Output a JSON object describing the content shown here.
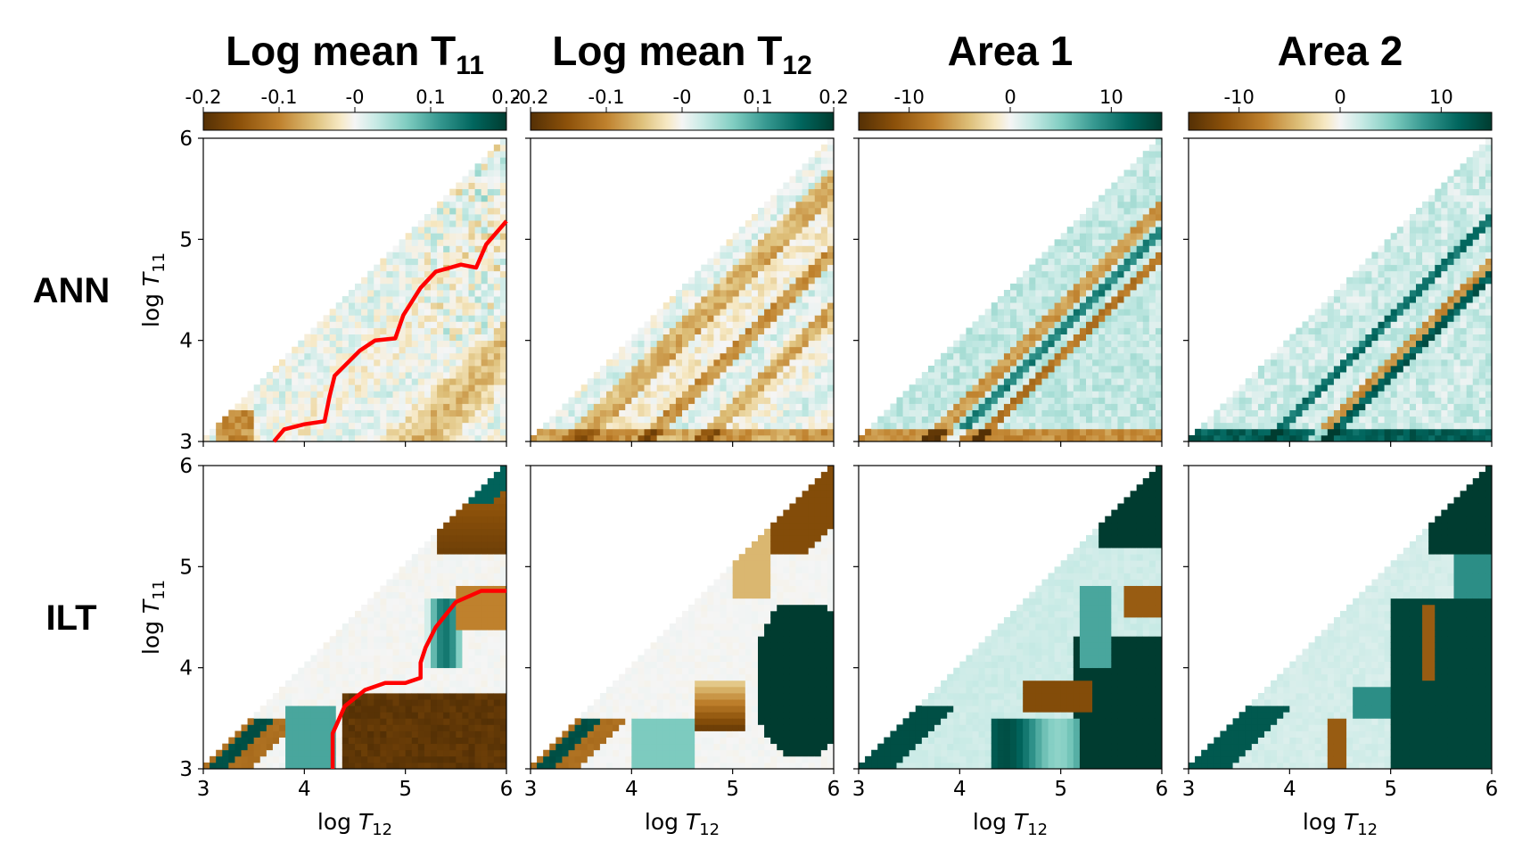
{
  "figure": {
    "column_titles": [
      {
        "main": "Log mean T",
        "sub": "11"
      },
      {
        "main": "Log mean T",
        "sub": "12"
      },
      {
        "main": "Area 1",
        "sub": ""
      },
      {
        "main": "Area 2",
        "sub": ""
      }
    ],
    "row_labels": [
      "ANN",
      "ILT"
    ],
    "xlabel": {
      "main": "log ",
      "var": "T",
      "sub": "12"
    },
    "ylabel": {
      "main": "log ",
      "var": "T",
      "sub": "11"
    },
    "colormap": "BrBG",
    "colors": {
      "brown": "#6b3a05",
      "tan": "#e9c98b",
      "white": "#f5f5f5",
      "teal_light": "#8fd0c5",
      "teal_dark": "#013e30",
      "boundary": "#ff0000"
    }
  },
  "chart_data": [
    {
      "type": "heatmap",
      "title": "Log mean T11",
      "row": "ANN",
      "xlabel": "log T12",
      "ylabel": "log T11",
      "xlim": [
        3,
        6
      ],
      "ylim": [
        3,
        6
      ],
      "xticks": [
        3,
        4,
        5,
        6
      ],
      "yticks": [
        3,
        4,
        5,
        6
      ],
      "colorbar": {
        "range": [
          -0.2,
          0.2
        ],
        "ticks": [
          -0.2,
          -0.1,
          0,
          0.1,
          0.2
        ],
        "tick_labels": [
          "-0.2",
          "-0.1",
          "-0",
          "0.1",
          "0.2"
        ]
      },
      "boundary_curve": [
        [
          3.7,
          3.0
        ],
        [
          3.8,
          3.12
        ],
        [
          4.0,
          3.17
        ],
        [
          4.2,
          3.2
        ],
        [
          4.25,
          3.45
        ],
        [
          4.3,
          3.65
        ],
        [
          4.55,
          3.9
        ],
        [
          4.7,
          4.0
        ],
        [
          4.9,
          4.02
        ],
        [
          4.98,
          4.25
        ],
        [
          5.15,
          4.52
        ],
        [
          5.3,
          4.68
        ],
        [
          5.55,
          4.75
        ],
        [
          5.7,
          4.72
        ],
        [
          5.8,
          4.95
        ],
        [
          6.0,
          5.18
        ]
      ]
    },
    {
      "type": "heatmap",
      "title": "Log mean T12",
      "row": "ANN",
      "xlabel": "log T12",
      "ylabel": "log T11",
      "xlim": [
        3,
        6
      ],
      "ylim": [
        3,
        6
      ],
      "xticks": [
        3,
        4,
        5,
        6
      ],
      "yticks": [
        3,
        4,
        5,
        6
      ],
      "colorbar": {
        "range": [
          -0.2,
          0.2
        ],
        "ticks": [
          -0.2,
          -0.1,
          0,
          0.1,
          0.2
        ],
        "tick_labels": [
          "-0.2",
          "-0.1",
          "-0",
          "0.1",
          "0.2"
        ]
      }
    },
    {
      "type": "heatmap",
      "title": "Area 1",
      "row": "ANN",
      "xlabel": "log T12",
      "ylabel": "log T11",
      "xlim": [
        3,
        6
      ],
      "ylim": [
        3,
        6
      ],
      "xticks": [
        3,
        4,
        5,
        6
      ],
      "yticks": [
        3,
        4,
        5,
        6
      ],
      "colorbar": {
        "range": [
          -15,
          15
        ],
        "ticks": [
          -10,
          0,
          10
        ],
        "tick_labels": [
          "-10",
          "0",
          "10"
        ]
      }
    },
    {
      "type": "heatmap",
      "title": "Area 2",
      "row": "ANN",
      "xlabel": "log T12",
      "ylabel": "log T11",
      "xlim": [
        3,
        6
      ],
      "ylim": [
        3,
        6
      ],
      "xticks": [
        3,
        4,
        5,
        6
      ],
      "yticks": [
        3,
        4,
        5,
        6
      ],
      "colorbar": {
        "range": [
          -15,
          15
        ],
        "ticks": [
          -10,
          0,
          10
        ],
        "tick_labels": [
          "-10",
          "0",
          "10"
        ]
      }
    },
    {
      "type": "heatmap",
      "title": "Log mean T11",
      "row": "ILT",
      "xlabel": "log T12",
      "ylabel": "log T11",
      "xlim": [
        3,
        6
      ],
      "ylim": [
        3,
        6
      ],
      "xticks": [
        3,
        4,
        5,
        6
      ],
      "yticks": [
        3,
        4,
        5,
        6
      ],
      "boundary_curve": [
        [
          4.28,
          3.0
        ],
        [
          4.28,
          3.35
        ],
        [
          4.4,
          3.62
        ],
        [
          4.6,
          3.78
        ],
        [
          4.8,
          3.85
        ],
        [
          5.0,
          3.85
        ],
        [
          5.15,
          3.9
        ],
        [
          5.15,
          4.05
        ],
        [
          5.2,
          4.2
        ],
        [
          5.3,
          4.4
        ],
        [
          5.5,
          4.65
        ],
        [
          5.75,
          4.76
        ],
        [
          6.0,
          4.76
        ]
      ]
    },
    {
      "type": "heatmap",
      "title": "Log mean T12",
      "row": "ILT",
      "xlabel": "log T12",
      "ylabel": "log T11",
      "xlim": [
        3,
        6
      ],
      "ylim": [
        3,
        6
      ],
      "xticks": [
        3,
        4,
        5,
        6
      ],
      "yticks": [
        3,
        4,
        5,
        6
      ]
    },
    {
      "type": "heatmap",
      "title": "Area 1",
      "row": "ILT",
      "xlabel": "log T12",
      "ylabel": "log T11",
      "xlim": [
        3,
        6
      ],
      "ylim": [
        3,
        6
      ],
      "xticks": [
        3,
        4,
        5,
        6
      ],
      "yticks": [
        3,
        4,
        5,
        6
      ]
    },
    {
      "type": "heatmap",
      "title": "Area 2",
      "row": "ILT",
      "xlabel": "log T12",
      "ylabel": "log T11",
      "xlim": [
        3,
        6
      ],
      "ylim": [
        3,
        6
      ],
      "xticks": [
        3,
        4,
        5,
        6
      ],
      "yticks": [
        3,
        4,
        5,
        6
      ]
    }
  ]
}
